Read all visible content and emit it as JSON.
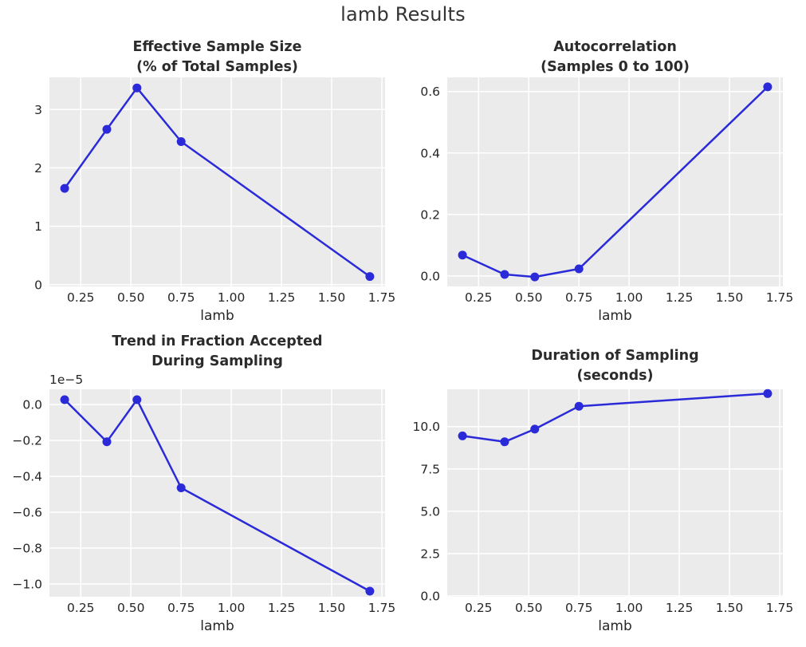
{
  "header": {
    "title": "lamb Results"
  },
  "style": {
    "figure_background": "#ffffff",
    "axes_background": "#ebebeb",
    "gridline_color": "#ffffff",
    "line_color": "#2a2ad9",
    "marker_color": "#2a2ad9",
    "text_color": "#262626",
    "title_color": "#2b2b2b"
  },
  "chart_data": [
    {
      "id": "effective-sample-size",
      "type": "line",
      "title": "Effective Sample Size (% of Total Samples)",
      "title_lines": [
        "Effective Sample Size",
        "(% of Total Samples)"
      ],
      "xlabel": "lamb",
      "x": [
        0.17,
        0.38,
        0.53,
        0.75,
        1.69
      ],
      "y": [
        1.65,
        2.66,
        3.37,
        2.45,
        0.14
      ],
      "xlim": [
        0.094,
        1.766
      ],
      "ylim": [
        -0.03,
        3.55
      ],
      "xtick_values": [
        0.25,
        0.5,
        0.75,
        1.0,
        1.25,
        1.5,
        1.75
      ],
      "xtick_labels": [
        "0.25",
        "0.50",
        "0.75",
        "1.00",
        "1.25",
        "1.50",
        "1.75"
      ],
      "ytick_values": [
        0,
        1,
        2,
        3
      ],
      "ytick_labels": [
        "0",
        "1",
        "2",
        "3"
      ],
      "grid": true,
      "legend": null
    },
    {
      "id": "autocorrelation",
      "type": "line",
      "title": "Autocorrelation (Samples 0 to 100)",
      "title_lines": [
        "Autocorrelation",
        "(Samples 0 to 100)"
      ],
      "xlabel": "lamb",
      "x": [
        0.17,
        0.38,
        0.53,
        0.75,
        1.69
      ],
      "y": [
        0.068,
        0.005,
        -0.003,
        0.023,
        0.615
      ],
      "xlim": [
        0.094,
        1.766
      ],
      "ylim": [
        -0.034,
        0.646
      ],
      "xtick_values": [
        0.25,
        0.5,
        0.75,
        1.0,
        1.25,
        1.5,
        1.75
      ],
      "xtick_labels": [
        "0.25",
        "0.50",
        "0.75",
        "1.00",
        "1.25",
        "1.50",
        "1.75"
      ],
      "ytick_values": [
        0.0,
        0.2,
        0.4,
        0.6
      ],
      "ytick_labels": [
        "0.0",
        "0.2",
        "0.4",
        "0.6"
      ],
      "grid": true,
      "legend": null
    },
    {
      "id": "trend-fraction-accepted",
      "type": "line",
      "title": "Trend in Fraction Accepted During Sampling",
      "title_lines": [
        "Trend in Fraction Accepted",
        "During Sampling"
      ],
      "xlabel": "lamb",
      "offset_text": "1e−5",
      "y_scale": 1e-05,
      "x": [
        0.17,
        0.38,
        0.53,
        0.75,
        1.69
      ],
      "y": [
        0.027,
        -0.207,
        0.027,
        -0.464,
        -1.04
      ],
      "xlim": [
        0.094,
        1.766
      ],
      "ylim": [
        -1.071,
        0.085
      ],
      "xtick_values": [
        0.25,
        0.5,
        0.75,
        1.0,
        1.25,
        1.5,
        1.75
      ],
      "xtick_labels": [
        "0.25",
        "0.50",
        "0.75",
        "1.00",
        "1.25",
        "1.50",
        "1.75"
      ],
      "ytick_values": [
        0.0,
        -0.2,
        -0.4,
        -0.6,
        -0.8,
        -1.0
      ],
      "ytick_labels": [
        "0.0",
        "−0.2",
        "−0.4",
        "−0.6",
        "−0.8",
        "−1.0"
      ],
      "grid": true,
      "legend": null
    },
    {
      "id": "duration-of-sampling",
      "type": "line",
      "title": "Duration of Sampling (seconds)",
      "title_lines": [
        "Duration of Sampling",
        "(seconds)"
      ],
      "xlabel": "lamb",
      "x": [
        0.17,
        0.38,
        0.53,
        0.75,
        1.69
      ],
      "y": [
        9.45,
        9.1,
        9.85,
        11.2,
        11.95
      ],
      "xlim": [
        0.094,
        1.766
      ],
      "ylim": [
        -0.05,
        12.2
      ],
      "xtick_values": [
        0.25,
        0.5,
        0.75,
        1.0,
        1.25,
        1.5,
        1.75
      ],
      "xtick_labels": [
        "0.25",
        "0.50",
        "0.75",
        "1.00",
        "1.25",
        "1.50",
        "1.75"
      ],
      "ytick_values": [
        0.0,
        2.5,
        5.0,
        7.5,
        10.0
      ],
      "ytick_labels": [
        "0.0",
        "2.5",
        "5.0",
        "7.5",
        "10.0"
      ],
      "grid": true,
      "legend": null
    }
  ]
}
